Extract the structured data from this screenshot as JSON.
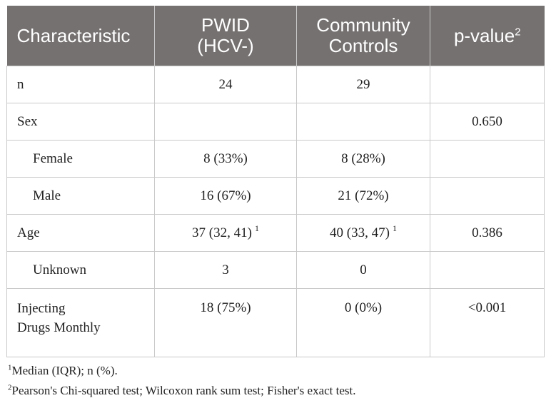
{
  "table": {
    "headers": {
      "characteristic": "Characteristic",
      "pwid_line1": "PWID",
      "pwid_line2": "(HCV-)",
      "controls_line1": "Community",
      "controls_line2": "Controls",
      "pvalue": "p-value",
      "pvalue_sup": "2"
    },
    "rows": [
      {
        "label": "n",
        "pwid": "24",
        "controls": "29",
        "p": ""
      },
      {
        "label": "Sex",
        "pwid": "",
        "controls": "",
        "p": "0.650"
      },
      {
        "label": "Female",
        "pwid": "8 (33%)",
        "controls": "8 (28%)",
        "p": ""
      },
      {
        "label": "Male",
        "pwid": "16 (67%)",
        "controls": "21 (72%)",
        "p": ""
      },
      {
        "label": "Age",
        "pwid": "37 (32, 41)",
        "pwid_sup": "1",
        "controls": "40 (33, 47)",
        "controls_sup": "1",
        "p": "0.386"
      },
      {
        "label": "Unknown",
        "pwid": "3",
        "controls": "0",
        "p": ""
      },
      {
        "label_line1": "Injecting",
        "label_line2": "Drugs Monthly",
        "pwid": "18 (75%)",
        "controls": "0 (0%)",
        "p": "<0.001"
      }
    ]
  },
  "footnotes": [
    {
      "marker": "1",
      "text": "Median (IQR); n (%)."
    },
    {
      "marker": "2",
      "text": "Pearson's Chi-squared test; Wilcoxon rank sum test; Fisher's exact test."
    }
  ]
}
